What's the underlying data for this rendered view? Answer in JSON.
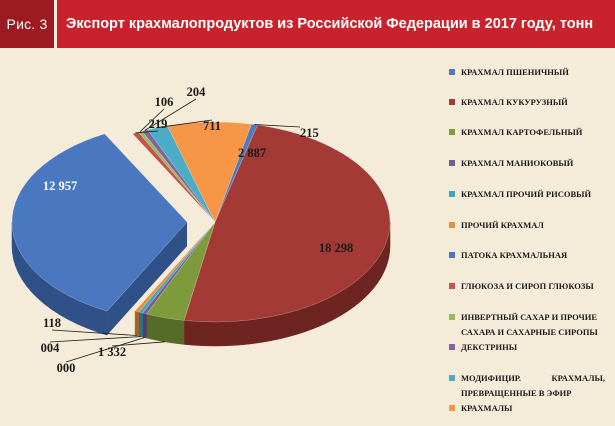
{
  "header": {
    "figure_label": "Рис. 3",
    "title": "Экспорт крахмалопродуктов из Российской Федерации в 2017 году, тонн"
  },
  "chart_data": {
    "type": "pie",
    "title": "Экспорт крахмалопродуктов из Российской Федерации в 2017 году, тонн",
    "units": "тонн",
    "legend_position": "right",
    "three_d": true,
    "slices": [
      {
        "name": "КРАХМАЛ ПШЕНИЧНЫЙ",
        "value": 215,
        "label": "215",
        "color": "#4f7bbf",
        "dark": "#32538a"
      },
      {
        "name": "КРАХМАЛ КУКУРУЗНЫЙ",
        "value": 18298,
        "label": "18 298",
        "color": "#a33a35",
        "dark": "#6e2421"
      },
      {
        "name": "КРАХМАЛ КАРТОФЕЛЬНЫЙ",
        "value": 1332,
        "label": "1 332",
        "color": "#7e9b3c",
        "dark": "#566b27"
      },
      {
        "name": "КРАХМАЛ МАНИОКОВЫЙ",
        "value": 0,
        "label": "000",
        "color": "#7b5a97",
        "dark": "#543d68"
      },
      {
        "name": "КРАХМАЛ ПРОЧИЙ РИСОВЫЙ",
        "value": 4,
        "label": "004",
        "color": "#3fa7c0",
        "dark": "#2a7284"
      },
      {
        "name": "ПРОЧИЙ КРАХМАЛ",
        "value": 118,
        "label": "118",
        "color": "#e8903a",
        "dark": "#a86423"
      },
      {
        "name": "ПАТОКА КРАХМАЛЬНАЯ",
        "value": 12957,
        "label": "12 957",
        "color": "#4a78c0",
        "dark": "#2f5188",
        "exploded": true
      },
      {
        "name": "ГЛЮКОЗА И СИРОП ГЛЮКОЗЫ",
        "value": 219,
        "label": "219",
        "color": "#c4524d",
        "dark": "#8a3431"
      },
      {
        "name": "ИНВЕРТНЫЙ САХАР И ПРОЧИЕ САХАРА И САХАРНЫЕ СИРОПЫ",
        "value": 106,
        "label": "106",
        "color": "#9bbb59",
        "dark": "#6b833b"
      },
      {
        "name": "ДЕКСТРИНЫ",
        "value": 204,
        "label": "204",
        "color": "#8064a2",
        "dark": "#574370"
      },
      {
        "name": "МОДИФИЦИР. КРАХМАЛЫ, ПРЕВРАЩЕННЫЕ В ЭФИР",
        "value": 711,
        "label": "711",
        "color": "#4bacc6",
        "dark": "#33798c"
      },
      {
        "name": "КРАХМАЛЫ",
        "value": 2887,
        "label": "2 887",
        "color": "#f79646",
        "dark": "#b56a2c"
      }
    ]
  },
  "legend": {
    "items": [
      {
        "text": "КРАХМАЛ ПШЕНИЧНЫЙ",
        "color": "#4f7bbf"
      },
      {
        "text": "КРАХМАЛ КУКУРУЗНЫЙ",
        "color": "#a33a35"
      },
      {
        "text": "КРАХМАЛ КАРТОФЕЛЬНЫЙ",
        "color": "#7e9b3c"
      },
      {
        "text": "КРАХМАЛ МАНИОКОВЫЙ",
        "color": "#7b5a97"
      },
      {
        "text": "КРАХМАЛ ПРОЧИЙ РИСОВЫЙ",
        "color": "#3fa7c0"
      },
      {
        "text": "ПРОЧИЙ КРАХМАЛ",
        "color": "#e8903a"
      },
      {
        "text": "ПАТОКА КРАХМАЛЬНАЯ",
        "color": "#4a78c0"
      },
      {
        "text": "ГЛЮКОЗА И СИРОП ГЛЮКОЗЫ",
        "color": "#c4524d"
      },
      {
        "text": "ИНВЕРТНЫЙ САХАР И ПРОЧИЕ",
        "color": "#9bbb59"
      },
      {
        "text": "САХАРА И САХАРНЫЕ СИРОПЫ",
        "color": ""
      },
      {
        "text": "ДЕКСТРИНЫ",
        "color": "#8064a2"
      },
      {
        "text": "МОДИФИЦИР. КРАХМАЛЫ,",
        "color": "#4bacc6"
      },
      {
        "text": "ПРЕВРАЩЕННЫЕ В ЭФИР",
        "color": ""
      },
      {
        "text": "КРАХМАЛЫ",
        "color": "#f79646"
      }
    ]
  }
}
